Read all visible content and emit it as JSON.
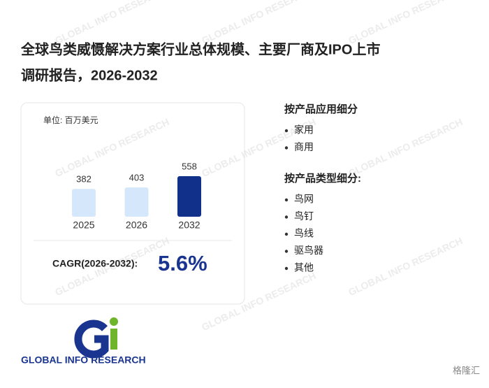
{
  "header": {
    "title_line1": "全球鸟类威慑解决方案行业总体规模、主要厂商及IPO上市",
    "title_line2": "调研报告，2026-2032"
  },
  "chart_data": {
    "type": "bar",
    "unit_label": "单位: 百万美元",
    "categories": [
      "2025",
      "2026",
      "2032"
    ],
    "values": [
      382,
      403,
      558
    ],
    "colors": [
      "#d5e7fa",
      "#d5e7fa",
      "#10308a"
    ],
    "cagr_label": "CAGR(2026-2032):",
    "cagr_value": "5.6%"
  },
  "segments": [
    {
      "title": "按产品应用细分",
      "items": [
        "家用",
        "商用"
      ]
    },
    {
      "title": "按产品类型细分:",
      "items": [
        "鸟网",
        "鸟钉",
        "鸟线",
        "驱鸟器",
        "其他"
      ]
    }
  ],
  "logo": {
    "text": "GLOBAL INFO RESEARCH"
  },
  "watermark": {
    "text": "GLOBAL INFO RESEARCH",
    "source": "格隆汇"
  }
}
